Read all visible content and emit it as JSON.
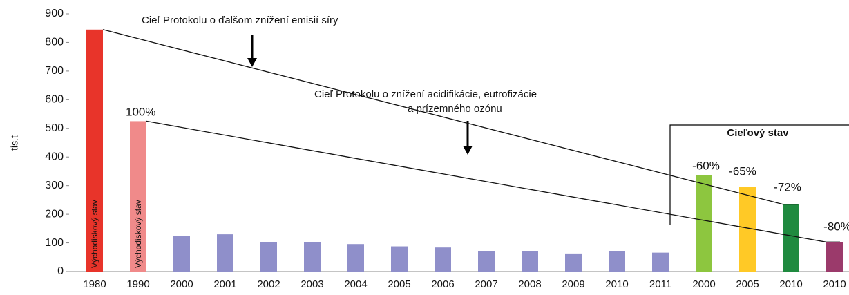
{
  "chart_data": {
    "type": "bar",
    "y_label": "tis.t",
    "categories": [
      "1980",
      "1990",
      "2000",
      "2001",
      "2002",
      "2003",
      "2004",
      "2005",
      "2006",
      "2007",
      "2008",
      "2009",
      "2010",
      "2011",
      "2000",
      "2005",
      "2010",
      "2010"
    ],
    "values": [
      845,
      525,
      125,
      130,
      103,
      103,
      96,
      88,
      84,
      70,
      70,
      63,
      70,
      66,
      337,
      295,
      235,
      103
    ],
    "colors": [
      "#e8342a",
      "#f08a8a",
      "#8f8fca",
      "#8f8fca",
      "#8f8fca",
      "#8f8fca",
      "#8f8fca",
      "#8f8fca",
      "#8f8fca",
      "#8f8fca",
      "#8f8fca",
      "#8f8fca",
      "#8f8fca",
      "#8f8fca",
      "#8dc63f",
      "#ffc926",
      "#1f8a3f",
      "#9b3a6b"
    ],
    "ylim": [
      0,
      900
    ],
    "yticks": [
      0,
      100,
      200,
      300,
      400,
      500,
      600,
      700,
      800,
      900
    ],
    "grid": false,
    "annotations": [
      {
        "text": "Cieľ Protokolu o ďalšom znížení emisií síry"
      },
      {
        "text": "Cieľ Protokolu o znížení acidifikácie, eutrofizácie"
      },
      {
        "text": "a prízemného ozónu"
      },
      {
        "text": "Cieľový stav"
      },
      {
        "text": "100%"
      },
      {
        "text": "-60%"
      },
      {
        "text": "-65%"
      },
      {
        "text": "-72%"
      },
      {
        "text": "-80%"
      },
      {
        "text": "Východiskový stav"
      },
      {
        "text": "Východiskový stav"
      }
    ]
  }
}
